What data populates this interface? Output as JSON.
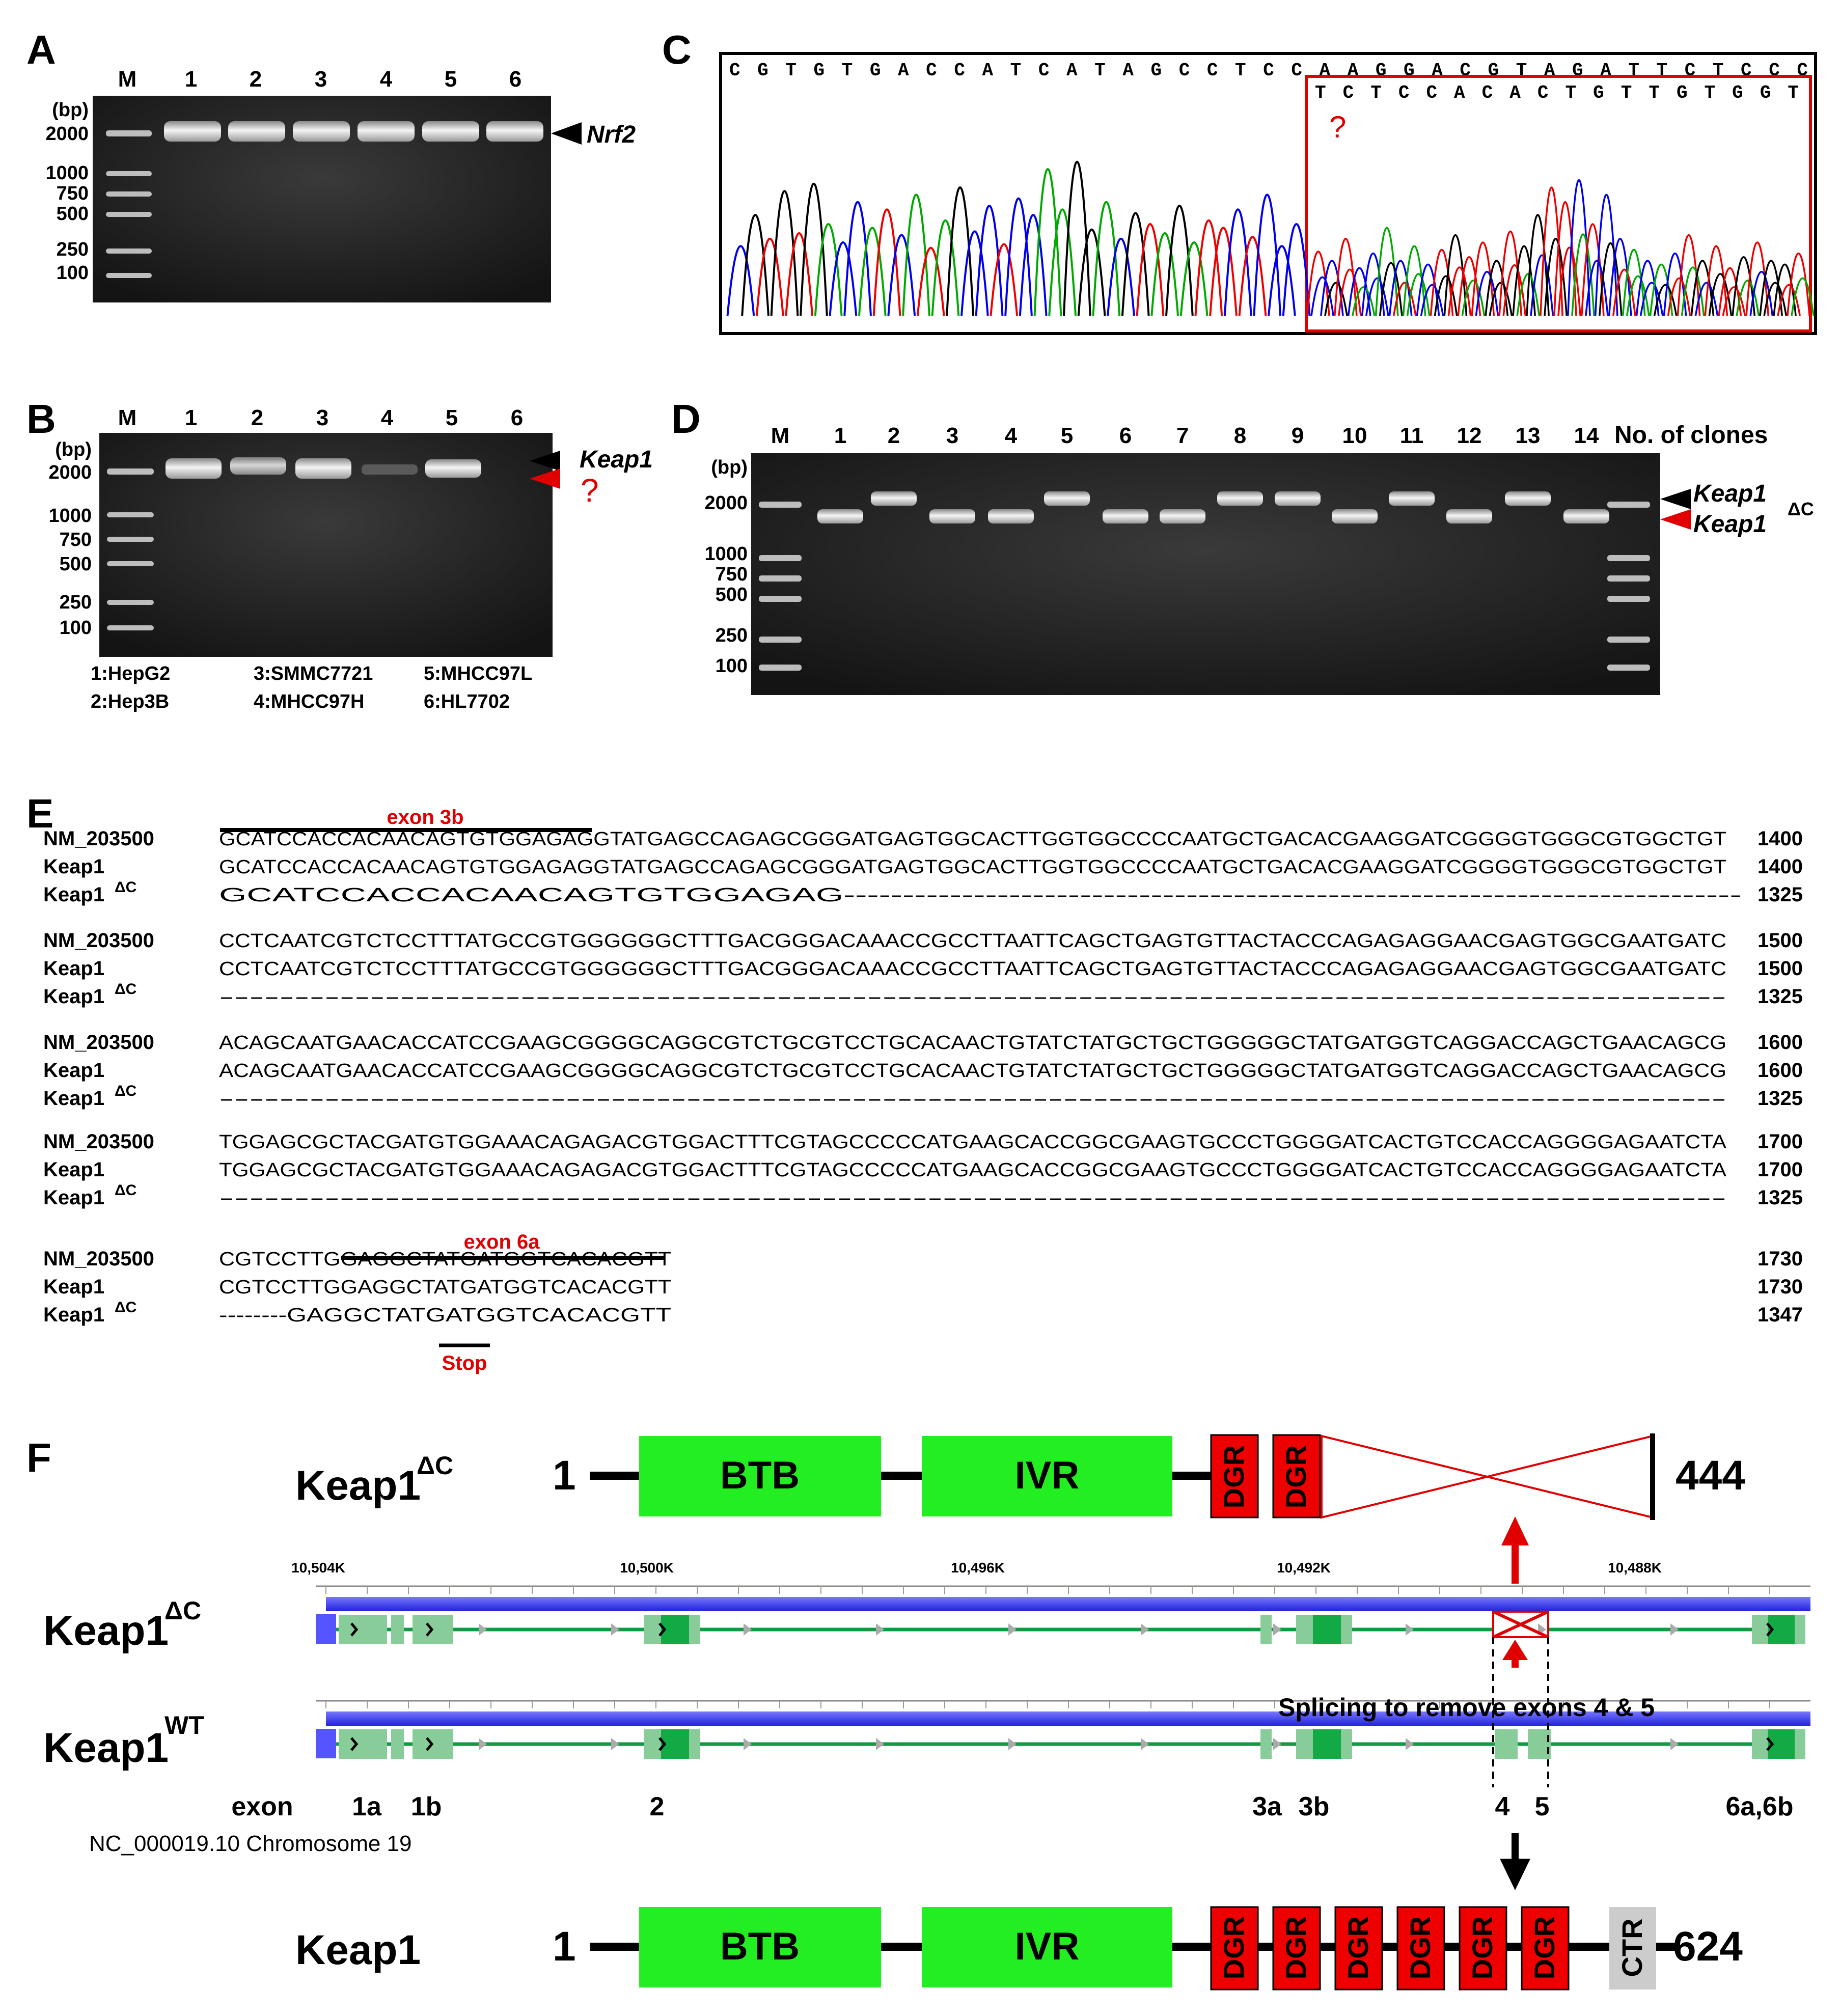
{
  "panel_labels": {
    "A": "A",
    "B": "B",
    "C": "C",
    "D": "D",
    "E": "E",
    "F": "F"
  },
  "panelA": {
    "lane_labels": [
      "M",
      "1",
      "2",
      "3",
      "4",
      "5",
      "6"
    ],
    "bp_unit": "(bp)",
    "ladder": [
      "2000",
      "1000",
      "750",
      "500",
      "250",
      "100"
    ],
    "band_label": "Nrf2"
  },
  "panelB": {
    "lane_labels": [
      "M",
      "1",
      "2",
      "3",
      "4",
      "5",
      "6"
    ],
    "bp_unit": "(bp)",
    "ladder": [
      "2000",
      "1000",
      "750",
      "500",
      "250",
      "100"
    ],
    "band_label": "Keap1",
    "question": "?",
    "legend": [
      "1:HepG2",
      "3:SMMC7721",
      "5:MHCC97L",
      "2:Hep3B",
      "4:MHCC97H",
      "6:HL7702"
    ]
  },
  "panelC": {
    "top_seq": "CGTGTGACCATCATAGCCTCCAAGGACGTAGATTCTCCC",
    "box_seq": "TCTCCACACTGTTGTGGT",
    "question": "?"
  },
  "panelD": {
    "lane_labels": [
      "M",
      "1",
      "2",
      "3",
      "4",
      "5",
      "6",
      "7",
      "8",
      "9",
      "10",
      "11",
      "12",
      "13",
      "14"
    ],
    "clones_label": "No. of clones",
    "bp_unit": "(bp)",
    "ladder": [
      "2000",
      "1000",
      "750",
      "500",
      "250",
      "100"
    ],
    "band_top": "Keap1",
    "band_bottom": "Keap1",
    "delta_c": "ΔC"
  },
  "panelE": {
    "exon3b": "exon 3b",
    "exon6a": "exon 6a",
    "stop": "Stop",
    "names": [
      "NM_203500",
      "Keap1",
      "Keap1"
    ],
    "delta_c": "ΔC",
    "blocks": [
      {
        "seqs": [
          "GCATCCACCACAACAGTGTGGAGAGGTATGAGCCAGAGCGGGATGAGTGGCACTTGGTGGCCCCAATGCTGACACGAAGGATCGGGGTGGGCGTGGCTGT",
          "GCATCCACCACAACAGTGTGGAGAGGTATGAGCCAGAGCGGGATGAGTGGCACTTGGTGGCCCCAATGCTGACACGAAGGATCGGGGTGGGCGTGGCTGT",
          "GCATCCACCACAACAGTGTGGAGAG----------------------------------------------------------------------------"
        ],
        "nums": [
          "1400",
          "1400",
          "1325"
        ]
      },
      {
        "seqs": [
          "CCTCAATCGTCTCCTTTATGCCGTGGGGGGCTTTGACGGGACAAACCGCCTTAATTCAGCTGAGTGTTACTACCCAGAGAGGAACGAGTGGCGAATGATC",
          "CCTCAATCGTCTCCTTTATGCCGTGGGGGGCTTTGACGGGACAAACCGCCTTAATTCAGCTGAGTGTTACTACCCAGAGAGGAACGAGTGGCGAATGATC",
          "----------------------------------------------------------------------------------------------------"
        ],
        "nums": [
          "1500",
          "1500",
          "1325"
        ]
      },
      {
        "seqs": [
          "ACAGCAATGAACACCATCCGAAGCGGGGCAGGCGTCTGCGTCCTGCACAACTGTATCTATGCTGCTGGGGGCTATGATGGTCAGGACCAGCTGAACAGCG",
          "ACAGCAATGAACACCATCCGAAGCGGGGCAGGCGTCTGCGTCCTGCACAACTGTATCTATGCTGCTGGGGGCTATGATGGTCAGGACCAGCTGAACAGCG",
          "----------------------------------------------------------------------------------------------------"
        ],
        "nums": [
          "1600",
          "1600",
          "1325"
        ]
      },
      {
        "seqs": [
          "TGGAGCGCTACGATGTGGAAACAGAGACGTGGACTTTCGTAGCCCCCATGAAGCACCGGCGAAGTGCCCTGGGGATCACTGTCCACCAGGGGAGAATCTA",
          "TGGAGCGCTACGATGTGGAAACAGAGACGTGGACTTTCGTAGCCCCCATGAAGCACCGGCGAAGTGCCCTGGGGATCACTGTCCACCAGGGGAGAATCTA",
          "----------------------------------------------------------------------------------------------------"
        ],
        "nums": [
          "1700",
          "1700",
          "1325"
        ]
      },
      {
        "seqs": [
          "CGTCCTTGGAGGCTATGATGGTCACACGTT",
          "CGTCCTTGGAGGCTATGATGGTCACACGTT",
          "--------GAGGCTATGATGGTCACACGTT"
        ],
        "nums": [
          "1730",
          "1730",
          "1347"
        ]
      }
    ]
  },
  "panelF": {
    "top_name": "Keap1",
    "delta_c": "ΔC",
    "wt": "WT",
    "num_one": "1",
    "btb": "BTB",
    "ivr": "IVR",
    "dgr": "DGR",
    "ctr": "CTR",
    "end_dc": "444",
    "end_full": "624",
    "bottom_name": "Keap1",
    "ruler": [
      "10,504K",
      "10,500K",
      "10,496K",
      "10,492K",
      "10,488K"
    ],
    "splicing": "Splicing to remove exons 4 & 5",
    "exon_word": "exon",
    "exons": [
      "1a",
      "1b",
      "2",
      "3a",
      "3b",
      "4",
      "5",
      "6a,6b"
    ],
    "chrom": "NC_000019.10 Chromosome 19"
  }
}
